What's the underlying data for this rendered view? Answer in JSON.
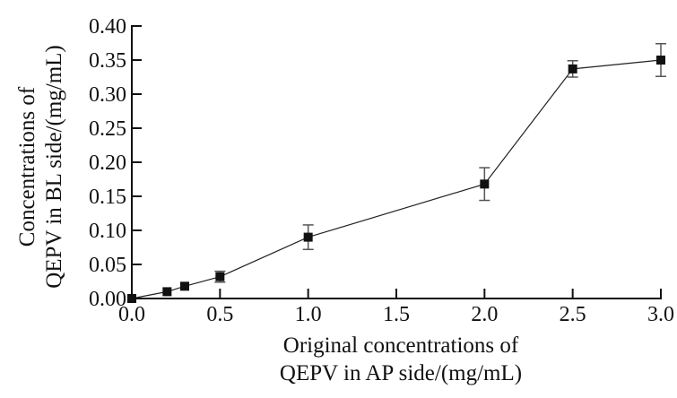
{
  "chart_data": {
    "type": "line",
    "title": "",
    "xlabel_lines": [
      "Original concentrations of",
      "QEPV in AP side/(mg/mL)"
    ],
    "ylabel_lines": [
      "Concentrations of",
      "QEPV in BL side/(mg/mL)"
    ],
    "xlim": [
      0,
      3.0
    ],
    "ylim": [
      0,
      0.4
    ],
    "xticks": [
      "0.0",
      "0.5",
      "1.0",
      "1.5",
      "2.0",
      "2.5",
      "3.0"
    ],
    "yticks": [
      "0.00",
      "0.05",
      "0.10",
      "0.15",
      "0.20",
      "0.25",
      "0.30",
      "0.35",
      "0.40"
    ],
    "grid": false,
    "series": [
      {
        "name": "QEPV",
        "marker": "square",
        "color": "#111111",
        "x": [
          0,
          0.2,
          0.3,
          0.5,
          1.0,
          2.0,
          2.5,
          3.0
        ],
        "y": [
          0.0,
          0.01,
          0.018,
          0.032,
          0.09,
          0.168,
          0.337,
          0.35
        ],
        "error": [
          0,
          0,
          0,
          0.008,
          0.018,
          0.024,
          0.012,
          0.024
        ]
      }
    ]
  }
}
